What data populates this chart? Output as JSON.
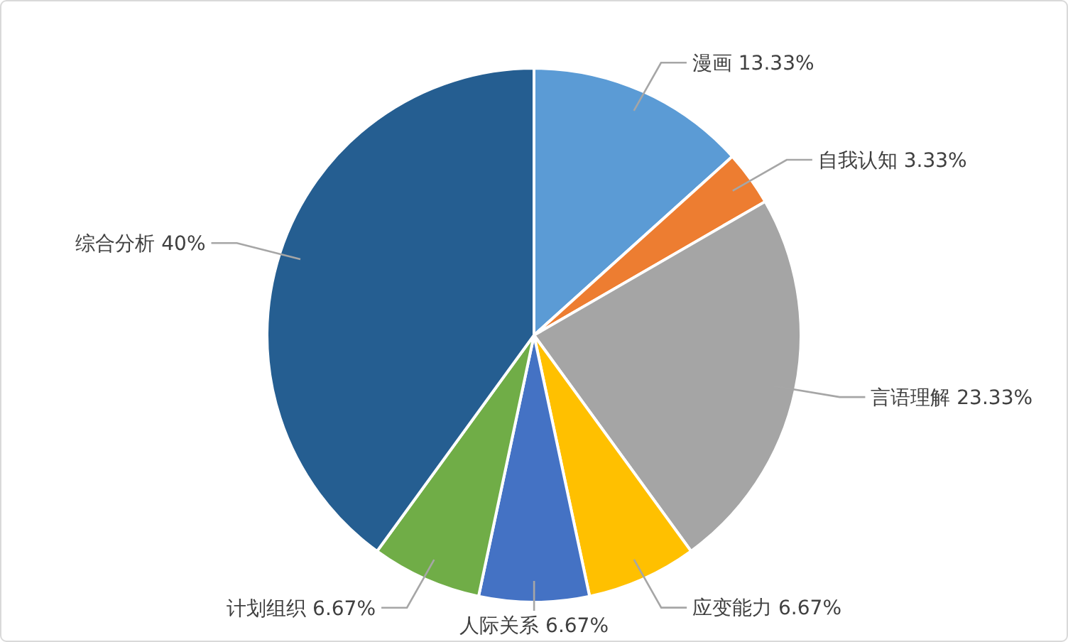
{
  "chart_data": {
    "type": "pie",
    "categories": [
      "漫画",
      "自我认知",
      "言语理解",
      "应变能力",
      "人际关系",
      "计划组织",
      "综合分析"
    ],
    "values": [
      13.33,
      3.33,
      23.33,
      6.67,
      6.67,
      6.67,
      40
    ],
    "value_labels": [
      "13.33%",
      "3.33%",
      "23.33%",
      "6.67%",
      "6.67%",
      "6.67%",
      "40%"
    ],
    "colors": [
      "#5b9bd5",
      "#ed7d31",
      "#a5a5a5",
      "#ffc000",
      "#4472c4",
      "#70ad47",
      "#255e91"
    ]
  }
}
